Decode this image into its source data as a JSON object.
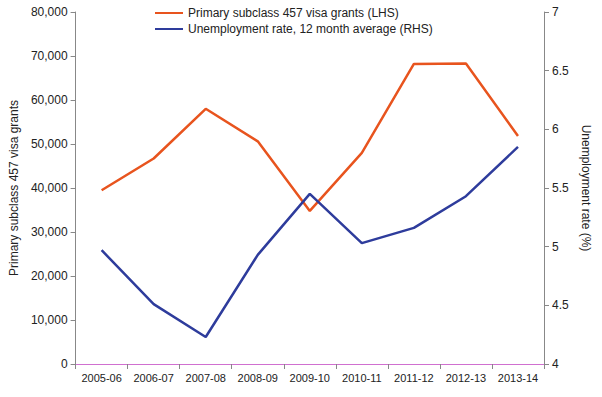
{
  "chart_data": {
    "type": "line",
    "categories": [
      "2005-06",
      "2006-07",
      "2007-08",
      "2008-09",
      "2009-10",
      "2010-11",
      "2011-12",
      "2012-13",
      "2013-14"
    ],
    "series": [
      {
        "name": "Primary subclass 457 visa grants (LHS)",
        "color": "#e8541e",
        "axis": "y",
        "values": [
          39500,
          46700,
          58000,
          50600,
          34800,
          48000,
          68200,
          68300,
          51800
        ]
      },
      {
        "name": "Unemployment rate, 12 month average (RHS)",
        "color": "#2e3c9c",
        "axis": "y2",
        "values": [
          4.97,
          4.51,
          4.23,
          4.93,
          5.45,
          5.03,
          5.16,
          5.43,
          5.85
        ]
      }
    ],
    "y_label": "Primary subclass 457 visa grants",
    "y2_label": "Unemployment rate (%)",
    "ylim": [
      0,
      80000
    ],
    "yticks": [
      0,
      {
        "value": 10000,
        "label": "10,000"
      },
      {
        "value": 20000,
        "label": "20,000"
      },
      {
        "value": 30000,
        "label": "30,000"
      },
      {
        "value": 40000,
        "label": "40,000"
      },
      {
        "value": 50000,
        "label": "50,000"
      },
      {
        "value": 60000,
        "label": "60,000"
      },
      {
        "value": 70000,
        "label": "70,000"
      },
      {
        "value": 80000,
        "label": "80,000"
      }
    ],
    "y2lim": [
      4,
      7
    ],
    "y2ticks": [
      4,
      4.5,
      5,
      5.5,
      6,
      6.5,
      7
    ],
    "grid": false,
    "legend": "upper left"
  }
}
